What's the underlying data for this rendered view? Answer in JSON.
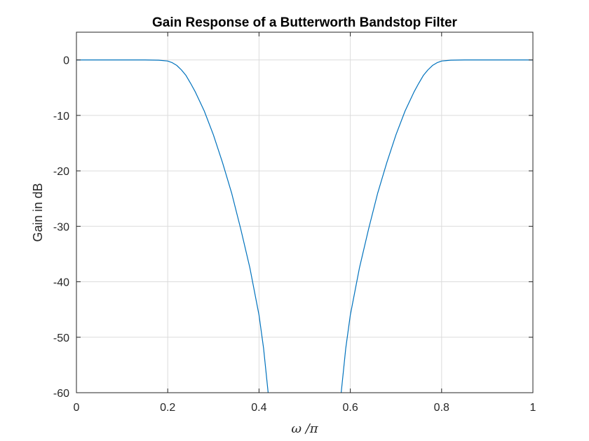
{
  "chart_data": {
    "type": "line",
    "title": "Gain Response of a Butterworth Bandstop Filter",
    "xlabel": "ω /π",
    "ylabel": "Gain in dB",
    "xlim": [
      0,
      1
    ],
    "ylim": [
      -60,
      5
    ],
    "xticks": [
      0,
      0.2,
      0.4,
      0.6,
      0.8,
      1
    ],
    "xtick_labels": [
      "0",
      "0.2",
      "0.4",
      "0.6",
      "0.8",
      "1"
    ],
    "yticks": [
      0,
      -10,
      -20,
      -30,
      -40,
      -50,
      -60
    ],
    "ytick_labels": [
      "0",
      "-10",
      "-20",
      "-30",
      "-40",
      "-50",
      "-60"
    ],
    "grid": true,
    "line_color": "#0072BD",
    "series": [
      {
        "x": [
          0,
          0.05,
          0.1,
          0.15,
          0.18,
          0.2,
          0.21,
          0.22,
          0.23,
          0.24,
          0.25,
          0.26,
          0.28,
          0.3,
          0.32,
          0.34,
          0.36,
          0.38,
          0.4,
          0.41,
          0.42
        ],
        "y": [
          0,
          0,
          0,
          0,
          -0.05,
          -0.2,
          -0.5,
          -1.0,
          -1.8,
          -2.8,
          -4.2,
          -5.7,
          -9.2,
          -13.5,
          -18.5,
          -24,
          -30.5,
          -37.5,
          -46,
          -52,
          -60
        ]
      },
      {
        "x": [
          0.58,
          0.59,
          0.6,
          0.62,
          0.64,
          0.66,
          0.68,
          0.7,
          0.72,
          0.74,
          0.75,
          0.76,
          0.77,
          0.78,
          0.79,
          0.8,
          0.82,
          0.85,
          0.9,
          0.95,
          1
        ],
        "y": [
          -60,
          -52,
          -46,
          -37.5,
          -30.5,
          -24,
          -18.5,
          -13.5,
          -9.2,
          -5.7,
          -4.2,
          -2.8,
          -1.8,
          -1.0,
          -0.5,
          -0.2,
          -0.05,
          0,
          0,
          0,
          0
        ]
      }
    ]
  }
}
